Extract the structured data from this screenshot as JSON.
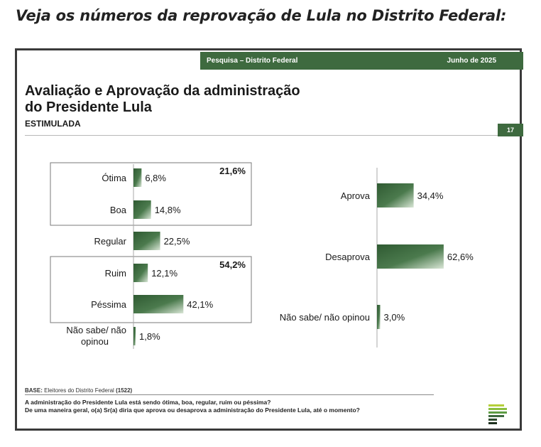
{
  "headline": "Veja os números da reprovação de Lula no Distrito Federal:",
  "slide": {
    "topbar_left": "Pesquisa – Distrito Federal",
    "topbar_right": "Junho de 2025",
    "title_line1": "Avaliação e Aprovação da administração",
    "title_line2": "do Presidente Lula",
    "subtitle": "ESTIMULADA",
    "page_number": "17",
    "base_label": "BASE:",
    "base_text": "Eleitores do Distrito Federal",
    "base_n": "(1522)",
    "question1": "A administração do Presidente Lula está sendo ótima, boa, regular, ruim ou péssima?",
    "question2": "De uma maneira geral, o(a) Sr(a) diria que aprova ou desaprova a administração do Presidente Lula, até o momento?",
    "bar_color": "#3e6a3f"
  },
  "chart_data": [
    {
      "type": "bar",
      "orientation": "horizontal",
      "categories": [
        "Ótima",
        "Boa",
        "Regular",
        "Ruim",
        "Péssima",
        "Não sabe/ não opinou"
      ],
      "values": [
        6.8,
        14.8,
        22.5,
        12.1,
        42.1,
        1.8
      ],
      "value_labels": [
        "6,8%",
        "14,8%",
        "22,5%",
        "12,1%",
        "42,1%",
        "1,8%"
      ],
      "groups": [
        {
          "members": [
            "Ótima",
            "Boa"
          ],
          "total_label": "21,6%"
        },
        {
          "members": [
            "Ruim",
            "Péssima"
          ],
          "total_label": "54,2%"
        }
      ]
    },
    {
      "type": "bar",
      "orientation": "horizontal",
      "categories": [
        "Aprova",
        "Desaprova",
        "Não sabe/ não opinou"
      ],
      "values": [
        34.4,
        62.6,
        3.0
      ],
      "value_labels": [
        "34,4%",
        "62,6%",
        "3,0%"
      ]
    }
  ]
}
